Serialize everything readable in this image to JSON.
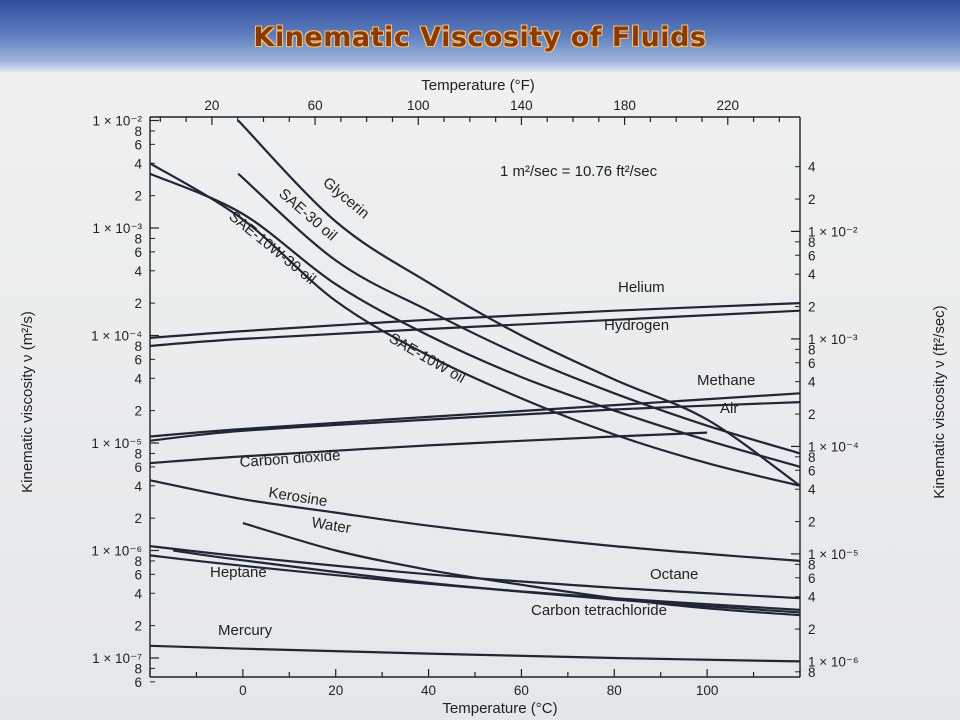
{
  "title": "Kinematic Viscosity of Fluids",
  "chart_data": {
    "type": "line",
    "x_axis": {
      "label": "Temperature (°C)",
      "range": [
        -20,
        120
      ],
      "ticks": [
        0,
        20,
        40,
        60,
        80,
        100
      ],
      "tick_labels": [
        "0",
        "20",
        "40",
        "60",
        "80",
        "100"
      ]
    },
    "x2_axis": {
      "label": "Temperature (°F)",
      "ticks": [
        20,
        60,
        100,
        140,
        180,
        220
      ],
      "tick_labels": [
        "20",
        "60",
        "100",
        "140",
        "180",
        "220"
      ]
    },
    "y_axis": {
      "label": "Kinematic viscosity ν (m²/s)",
      "scale": "log",
      "range": [
        5e-08,
        0.01
      ],
      "major_labels": [
        "1 × 10⁻²",
        "1 × 10⁻³",
        "1 × 10⁻⁴",
        "1 × 10⁻⁵",
        "1 × 10⁻⁶",
        "1 × 10⁻⁷"
      ],
      "minor_labels": [
        "8",
        "6",
        "4",
        "2"
      ]
    },
    "y2_axis": {
      "label": "Kinematic viscosity ν (ft²/sec)",
      "scale": "log",
      "major_labels": [
        "1 × 10⁻²",
        "1 × 10⁻³",
        "1 × 10⁻⁴",
        "1 × 10⁻⁵",
        "1 × 10⁻⁶"
      ],
      "minor_labels": [
        "8",
        "6",
        "4",
        "2"
      ]
    },
    "annotation": "1 m²/sec = 10.76 ft²/sec",
    "grid": false,
    "series": [
      {
        "name": "Glycerin",
        "x": [
          -1,
          20,
          40,
          60,
          80,
          100,
          120
        ],
        "y": [
          0.01,
          0.00115,
          0.00031,
          0.0001,
          3.9e-05,
          1.65e-05,
          4e-06
        ]
      },
      {
        "name": "SAE-30 oil",
        "x": [
          -1,
          20,
          40,
          60,
          80,
          100,
          120
        ],
        "y": [
          0.0032,
          0.0005,
          0.00017,
          6.5e-05,
          2.9e-05,
          1.45e-05,
          8e-06
        ]
      },
      {
        "name": "SAE-10W-30 oil",
        "x": [
          -20,
          0,
          20,
          40,
          60,
          80,
          100,
          120
        ],
        "y": [
          0.0032,
          0.00135,
          0.0003,
          0.0001,
          4.1e-05,
          2e-05,
          1.06e-05,
          6e-06
        ]
      },
      {
        "name": "SAE-10W oil",
        "x": [
          -20,
          0,
          20,
          40,
          60,
          80,
          100,
          120
        ],
        "y": [
          0.004,
          0.0012,
          0.00021,
          6.5e-05,
          2.6e-05,
          1.2e-05,
          6.5e-06,
          4e-06
        ]
      },
      {
        "name": "Helium",
        "x": [
          -20,
          0,
          40,
          80,
          120
        ],
        "y": [
          9.5e-05,
          0.00011,
          0.00014,
          0.00017,
          0.0002
        ]
      },
      {
        "name": "Hydrogen",
        "x": [
          -20,
          0,
          40,
          80,
          120
        ],
        "y": [
          8e-05,
          9.3e-05,
          0.000115,
          0.00014,
          0.00017
        ]
      },
      {
        "name": "Methane",
        "x": [
          -20,
          0,
          40,
          80,
          120
        ],
        "y": [
          1.15e-05,
          1.35e-05,
          1.75e-05,
          2.25e-05,
          2.9e-05
        ]
      },
      {
        "name": "Air",
        "x": [
          -20,
          0,
          40,
          80,
          120
        ],
        "y": [
          1.05e-05,
          1.3e-05,
          1.65e-05,
          2.05e-05,
          2.4e-05
        ]
      },
      {
        "name": "Carbon dioxide",
        "x": [
          -20,
          0,
          40,
          80,
          100
        ],
        "y": [
          6.5e-06,
          7.5e-06,
          9.5e-06,
          1.15e-05,
          1.25e-05
        ]
      },
      {
        "name": "Kerosine",
        "x": [
          -20,
          0,
          20,
          40,
          60,
          80,
          100,
          120
        ],
        "y": [
          4.5e-06,
          3e-06,
          2.25e-06,
          1.7e-06,
          1.35e-06,
          1.1e-06,
          9.3e-07,
          8e-07
        ]
      },
      {
        "name": "Water",
        "x": [
          0,
          20,
          40,
          60,
          80,
          100,
          120
        ],
        "y": [
          1.8e-06,
          1e-06,
          6.6e-07,
          4.8e-07,
          3.6e-07,
          2.9e-07,
          2.5e-07
        ]
      },
      {
        "name": "Octane",
        "x": [
          -20,
          0,
          40,
          80,
          120
        ],
        "y": [
          1.1e-06,
          8.8e-07,
          6e-07,
          4.5e-07,
          3.6e-07
        ]
      },
      {
        "name": "Heptane",
        "x": [
          -20,
          0,
          40,
          80,
          120
        ],
        "y": [
          9e-07,
          7.2e-07,
          4.9e-07,
          3.6e-07,
          2.8e-07
        ]
      },
      {
        "name": "Carbon tetrachloride",
        "x": [
          -15,
          0,
          40,
          80,
          120
        ],
        "y": [
          1e-06,
          8.1e-07,
          5e-07,
          3.5e-07,
          2.65e-07
        ]
      },
      {
        "name": "Mercury",
        "x": [
          -20,
          0,
          40,
          80,
          120
        ],
        "y": [
          1.3e-07,
          1.22e-07,
          1.1e-07,
          1e-07,
          9.3e-08
        ]
      }
    ]
  }
}
